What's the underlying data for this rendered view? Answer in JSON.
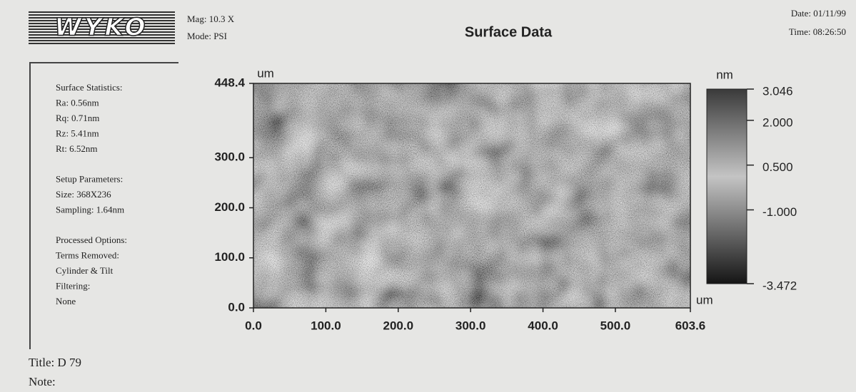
{
  "header": {
    "logo": "WYKO",
    "mag": "Mag: 10.3 X",
    "mode": "Mode: PSI",
    "title": "Surface Data",
    "date": "Date: 01/11/99",
    "time": "Time: 08:26:50"
  },
  "sidebar": [
    [
      "Surface Statistics:",
      "Ra: 0.56nm",
      "Rq: 0.71nm",
      "Rz: 5.41nm",
      "Rt: 6.52nm"
    ],
    [
      "Setup Parameters:",
      "Size: 368X236",
      "Sampling: 1.64nm"
    ],
    [
      "Processed Options:",
      "Terms Removed:",
      "Cylinder & Tilt",
      "Filtering:",
      "None"
    ]
  ],
  "chart_data": {
    "type": "heatmap",
    "x_unit": "um",
    "y_unit": "um",
    "xlim": [
      0,
      603.6
    ],
    "xticks": [
      {
        "value": 0,
        "label": "0.0"
      },
      {
        "value": 100,
        "label": "100.0"
      },
      {
        "value": 200,
        "label": "200.0"
      },
      {
        "value": 300,
        "label": "300.0"
      },
      {
        "value": 400,
        "label": "400.0"
      },
      {
        "value": 500,
        "label": "500.0"
      },
      603.6
    ],
    "ylim": [
      0,
      448.4
    ],
    "yticks": [
      {
        "value": 0,
        "label": "0.0"
      },
      {
        "value": 100,
        "label": "100.0"
      },
      {
        "value": 200,
        "label": "200.0"
      },
      {
        "value": 300,
        "label": "300.0"
      },
      448.4
    ],
    "colorbar": {
      "unit": "nm",
      "lim": [
        -3.472,
        3.046
      ],
      "ticks": [
        3.046,
        {
          "value": 2,
          "label": "2.000"
        },
        {
          "value": 0.5,
          "label": "0.500"
        },
        {
          "value": -1,
          "label": "-1.000"
        },
        -3.472
      ]
    }
  },
  "footer": {
    "title": "Title: D 79",
    "note": "Note:"
  }
}
